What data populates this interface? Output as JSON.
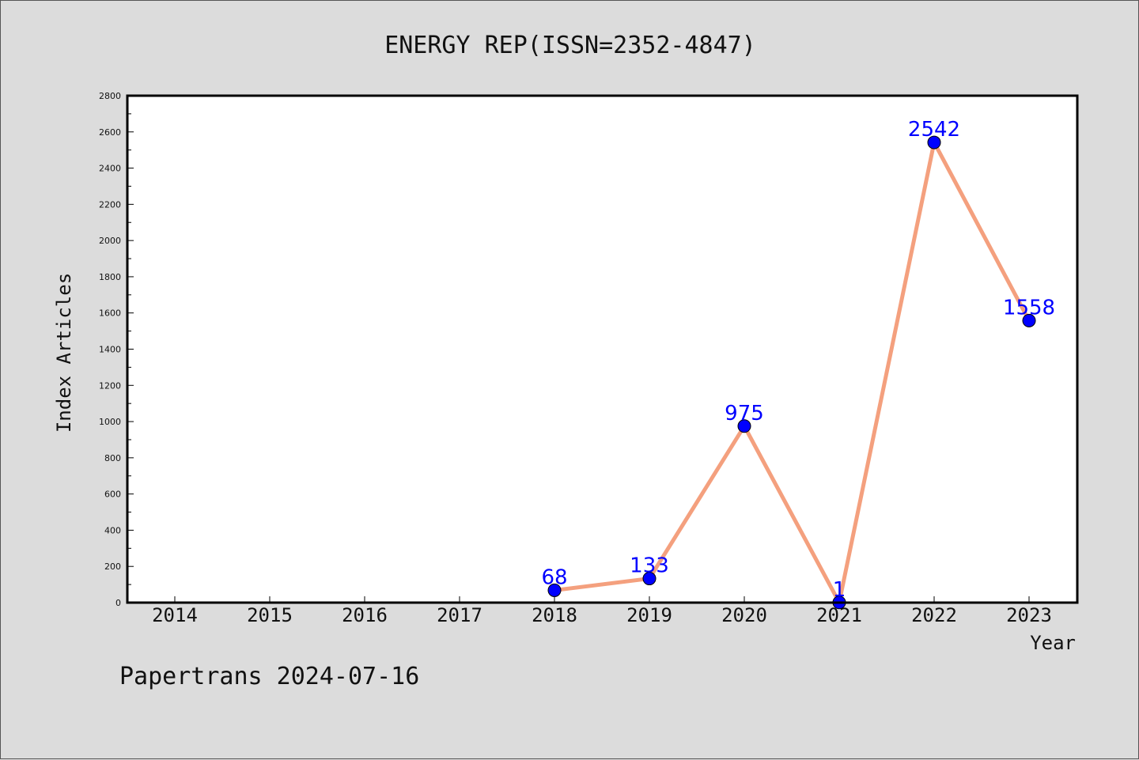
{
  "chart_data": {
    "type": "line",
    "title": "ENERGY REP(ISSN=2352-4847)",
    "xlabel": "Year",
    "ylabel": "Index Articles",
    "categories": [
      "2014",
      "2015",
      "2016",
      "2017",
      "2018",
      "2019",
      "2020",
      "2021",
      "2022",
      "2023"
    ],
    "series": [
      {
        "values": [
          null,
          null,
          null,
          null,
          68,
          133,
          975,
          1,
          2542,
          1558
        ]
      }
    ],
    "data_labels": [
      "",
      "",
      "",
      "",
      "68",
      "133",
      "975",
      "1",
      "2542",
      "1558"
    ],
    "ylim": [
      0,
      2800
    ],
    "yticks": [
      "0",
      "200",
      "400",
      "600",
      "800",
      "1000",
      "1200",
      "1400",
      "1600",
      "1800",
      "2000",
      "2200",
      "2400",
      "2600",
      "2800"
    ],
    "grid": false,
    "colors": {
      "line": "#f4a07e",
      "marker": "#0000ff",
      "label": "#0000ff"
    }
  },
  "footer": {
    "text": "Papertrans 2024-07-16"
  }
}
